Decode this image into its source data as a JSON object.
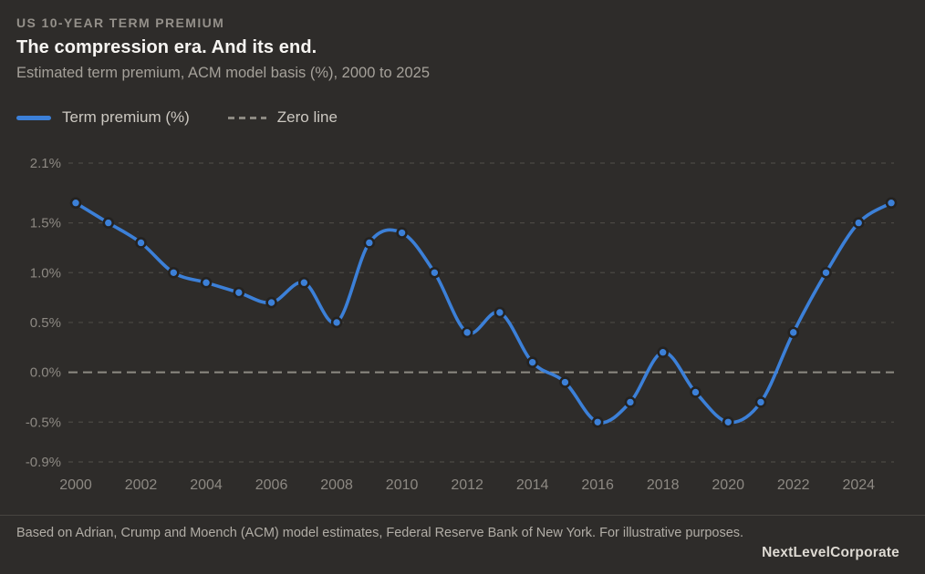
{
  "header": {
    "eyebrow": "US 10-YEAR TERM PREMIUM",
    "title": "The compression era. And its end.",
    "subtitle": "Estimated term premium, ACM model basis (%), 2000 to 2025"
  },
  "legend": {
    "series_label": "Term premium (%)",
    "zero_label": "Zero line"
  },
  "colors": {
    "background": "#2e2c2a",
    "line": "#3c80d8",
    "dot_fill": "#3c80d8",
    "dot_ring": "#242220",
    "zero_line": "#8d8a82",
    "gridline": "#4b4843",
    "axis_text": "#8d8983"
  },
  "chart_data": {
    "type": "line",
    "title": "The compression era. And its end.",
    "xlabel": "",
    "ylabel": "Estimated term premium, ACM model basis (%)",
    "x": [
      2000,
      2001,
      2002,
      2003,
      2004,
      2005,
      2006,
      2007,
      2008,
      2009,
      2010,
      2011,
      2012,
      2013,
      2014,
      2015,
      2016,
      2017,
      2018,
      2019,
      2020,
      2021,
      2022,
      2023,
      2024,
      2025
    ],
    "series": [
      {
        "name": "Term premium (%)",
        "values": [
          1.7,
          1.5,
          1.3,
          1.0,
          0.9,
          0.8,
          0.7,
          0.9,
          0.5,
          1.3,
          1.4,
          1.0,
          0.4,
          0.6,
          0.1,
          -0.1,
          -0.5,
          -0.3,
          0.2,
          -0.2,
          -0.5,
          -0.3,
          0.4,
          1.0,
          1.5,
          1.7
        ]
      }
    ],
    "xlim": [
      2000,
      2025
    ],
    "ylim": [
      -0.9,
      2.1
    ],
    "yticks": [
      {
        "value": 2.1,
        "label": "2.1%"
      },
      {
        "value": 1.5,
        "label": "1.5%"
      },
      {
        "value": 1.0,
        "label": "1.0%"
      },
      {
        "value": 0.5,
        "label": "0.5%"
      },
      {
        "value": 0.0,
        "label": "0.0%"
      },
      {
        "value": -0.5,
        "label": "-0.5%"
      },
      {
        "value": -0.9,
        "label": "-0.9%"
      }
    ],
    "xticks": [
      2000,
      2002,
      2004,
      2006,
      2008,
      2010,
      2012,
      2014,
      2016,
      2018,
      2020,
      2022,
      2024
    ],
    "grid": "horizontal dashed",
    "zero_line": true,
    "markers": true,
    "smooth": true,
    "legend_position": "top-left"
  },
  "footer": {
    "source": "Based on Adrian, Crump and Moench (ACM) model estimates, Federal Reserve Bank of New York. For illustrative purposes.",
    "brand": "NextLevelCorporate"
  }
}
